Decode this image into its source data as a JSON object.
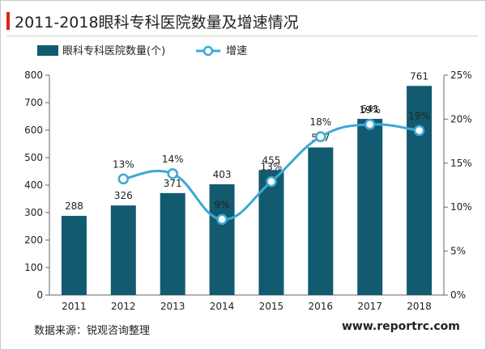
{
  "colors": {
    "accent": "#e0201a",
    "bar": "#125a70",
    "line": "#3ea8d4",
    "marker_fill": "#ffffff"
  },
  "title": "2011-2018眼科专科医院数量及增速情况",
  "legend": {
    "bar_label": "眼科专科医院数量(个)",
    "line_label": "增速"
  },
  "source": "数据来源：锐观咨询整理",
  "website": "www.reportrc.com",
  "chart_data": {
    "type": "bar+line",
    "categories": [
      "2011",
      "2012",
      "2013",
      "2014",
      "2015",
      "2016",
      "2017",
      "2018"
    ],
    "series": [
      {
        "name": "眼科专科医院数量(个)",
        "type": "bar",
        "axis": "left",
        "values": [
          288,
          326,
          371,
          403,
          455,
          537,
          641,
          761
        ],
        "labels": [
          "288",
          "326",
          "371",
          "403",
          "455",
          "537",
          "641",
          "761"
        ]
      },
      {
        "name": "增速",
        "type": "line",
        "axis": "right",
        "values": [
          null,
          13.2,
          13.8,
          8.6,
          12.9,
          18.0,
          19.4,
          18.7
        ],
        "labels": [
          "",
          "13%",
          "14%",
          "9%",
          "13%",
          "18%",
          "19%",
          "19%"
        ]
      }
    ],
    "ylim_left": [
      0,
      800
    ],
    "yticks_left": [
      "0",
      "100",
      "200",
      "300",
      "400",
      "500",
      "600",
      "700",
      "800"
    ],
    "ylim_right": [
      0,
      25
    ],
    "yticks_right": [
      "0%",
      "5%",
      "10%",
      "15%",
      "20%",
      "25%"
    ],
    "grid": false,
    "legend_position": "top-left"
  }
}
